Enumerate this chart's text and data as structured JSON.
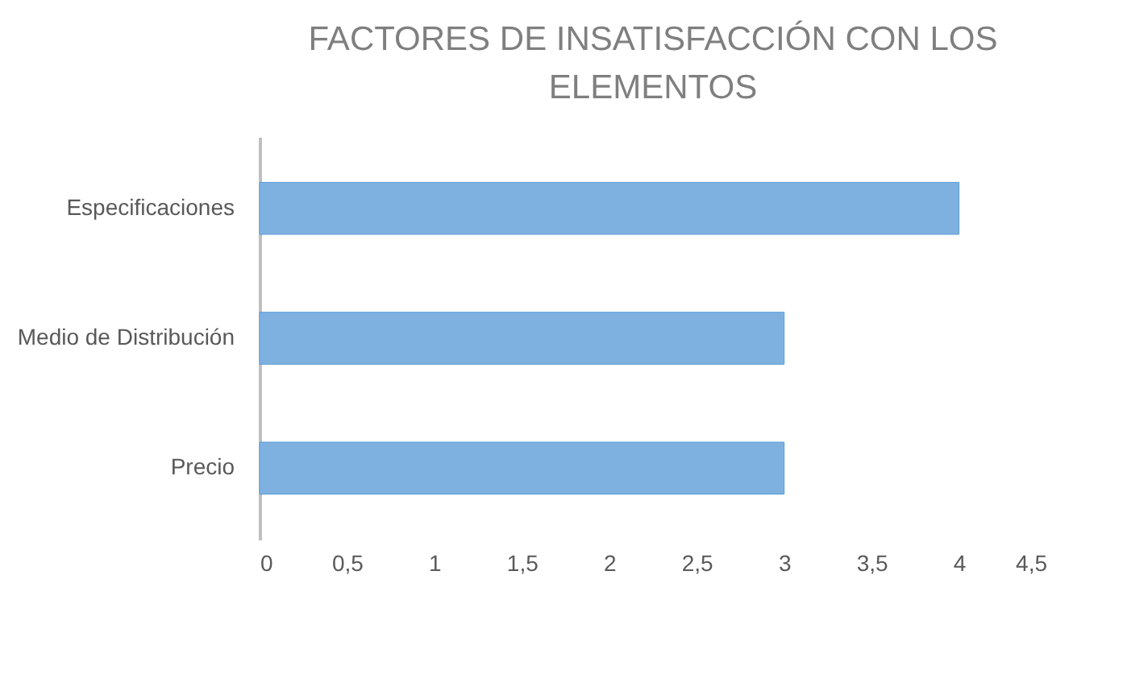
{
  "chart_data": {
    "type": "bar",
    "orientation": "horizontal",
    "title": "FACTORES DE INSATISFACCIÓN CON LOS ELEMENTOS",
    "categories": [
      "Especificaciones",
      "Medio de Distribución",
      "Precio"
    ],
    "values": [
      4,
      3,
      3
    ],
    "color": "#7fb1e0",
    "xlim": [
      0,
      4.5
    ],
    "xticks": [
      0,
      {
        "value": 0.5,
        "label": "0,5"
      },
      1,
      {
        "value": 1.5,
        "label": "1,5"
      },
      2,
      {
        "value": 2.5,
        "label": "2,5"
      },
      3,
      {
        "value": 3.5,
        "label": "3,5"
      },
      4,
      {
        "value": 4.5,
        "label": "4,5"
      }
    ],
    "grid": false
  }
}
